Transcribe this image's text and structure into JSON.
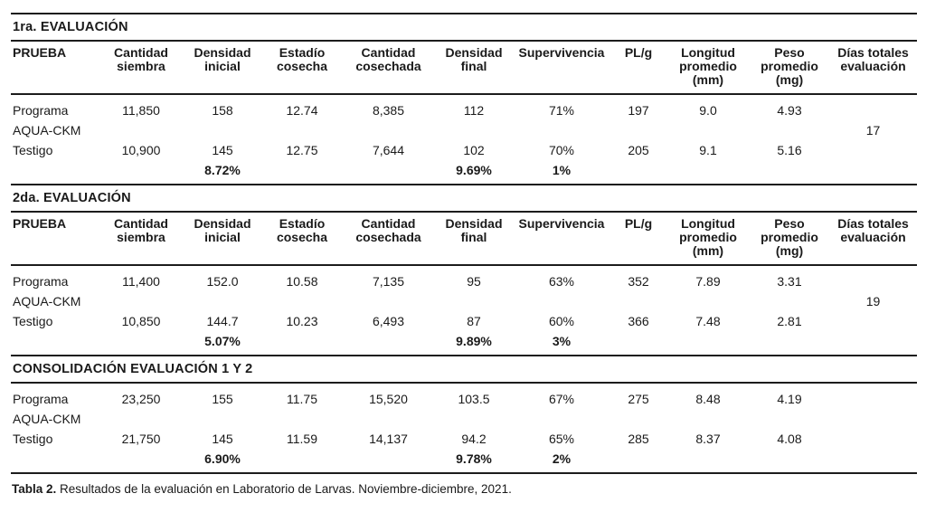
{
  "columns": [
    "PRUEBA",
    "Cantidad\nsiembra",
    "Densidad\ninicial",
    "Estadío\ncosecha",
    "Cantidad\ncosechada",
    "Densidad\nfinal",
    "Supervivencia",
    "PL/g",
    "Longitud\npromedio\n(mm)",
    "Peso\npromedio\n(mg)",
    "Días totales\nevaluación"
  ],
  "sections": [
    {
      "title": "1ra. EVALUACIÓN",
      "has_header": true,
      "rows": [
        {
          "bold": false,
          "cells": [
            "Programa",
            "11,850",
            "158",
            "12.74",
            "8,385",
            "112",
            "71%",
            "197",
            "9.0",
            "4.93",
            ""
          ]
        },
        {
          "bold": false,
          "cells": [
            "AQUA-CKM",
            "",
            "",
            "",
            "",
            "",
            "",
            "",
            "",
            "",
            "17"
          ]
        },
        {
          "bold": false,
          "cells": [
            "Testigo",
            "10,900",
            "145",
            "12.75",
            "7,644",
            "102",
            "70%",
            "205",
            "9.1",
            "5.16",
            ""
          ]
        },
        {
          "bold": true,
          "cells": [
            "",
            "",
            "8.72%",
            "",
            "",
            "9.69%",
            "1%",
            "",
            "",
            "",
            ""
          ]
        }
      ]
    },
    {
      "title": "2da. EVALUACIÓN",
      "has_header": true,
      "rows": [
        {
          "bold": false,
          "cells": [
            "Programa",
            "11,400",
            "152.0",
            "10.58",
            "7,135",
            "95",
            "63%",
            "352",
            "7.89",
            "3.31",
            ""
          ]
        },
        {
          "bold": false,
          "cells": [
            "AQUA-CKM",
            "",
            "",
            "",
            "",
            "",
            "",
            "",
            "",
            "",
            "19"
          ]
        },
        {
          "bold": false,
          "cells": [
            "Testigo",
            "10,850",
            "144.7",
            "10.23",
            "6,493",
            "87",
            "60%",
            "366",
            "7.48",
            "2.81",
            ""
          ]
        },
        {
          "bold": true,
          "cells": [
            "",
            "",
            "5.07%",
            "",
            "",
            "9.89%",
            "3%",
            "",
            "",
            "",
            ""
          ]
        }
      ]
    },
    {
      "title": "CONSOLIDACIÓN EVALUACIÓN 1 Y 2",
      "has_header": false,
      "rows": [
        {
          "bold": false,
          "cells": [
            "Programa",
            "23,250",
            "155",
            "11.75",
            "15,520",
            "103.5",
            "67%",
            "275",
            "8.48",
            "4.19",
            ""
          ]
        },
        {
          "bold": false,
          "cells": [
            "AQUA-CKM",
            "",
            "",
            "",
            "",
            "",
            "",
            "",
            "",
            "",
            ""
          ]
        },
        {
          "bold": false,
          "cells": [
            "Testigo",
            "21,750",
            "145",
            "11.59",
            "14,137",
            "94.2",
            "65%",
            "285",
            "8.37",
            "4.08",
            ""
          ]
        },
        {
          "bold": true,
          "cells": [
            "",
            "",
            "6.90%",
            "",
            "",
            "9.78%",
            "2%",
            "",
            "",
            "",
            ""
          ]
        }
      ]
    }
  ],
  "caption": {
    "label": "Tabla 2.",
    "text": " Resultados de la evaluación en Laboratorio de Larvas. Noviembre-diciembre, 2021."
  }
}
